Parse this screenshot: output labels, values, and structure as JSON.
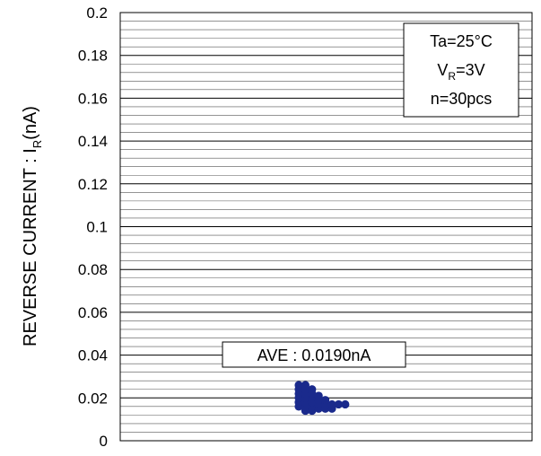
{
  "chart_data": {
    "type": "scatter",
    "ylabel": {
      "prefix": "REVERSE CURRENT : I",
      "sub": "R",
      "suffix": "(nA)"
    },
    "xlabel": "",
    "ylim": [
      0,
      0.2
    ],
    "yticks": [
      "0",
      "0.02",
      "0.04",
      "0.06",
      "0.08",
      "0.1",
      "0.12",
      "0.14",
      "0.16",
      "0.18",
      "0.2"
    ],
    "grid": true,
    "conditions": {
      "ta": "Ta=25°C",
      "vr": {
        "prefix": "V",
        "sub": "R",
        "suffix": "=3V"
      },
      "n": "n=30pcs"
    },
    "ave_label": "AVE : 0.0190nA",
    "marker_color": "#1a2a8c",
    "series": [
      {
        "points": [
          {
            "slot": 0,
            "y": 0.016
          },
          {
            "slot": 0,
            "y": 0.018
          },
          {
            "slot": 0,
            "y": 0.02
          },
          {
            "slot": 0,
            "y": 0.022
          },
          {
            "slot": 0,
            "y": 0.024
          },
          {
            "slot": 0,
            "y": 0.026
          },
          {
            "slot": 1,
            "y": 0.014
          },
          {
            "slot": 1,
            "y": 0.016
          },
          {
            "slot": 1,
            "y": 0.018
          },
          {
            "slot": 1,
            "y": 0.02
          },
          {
            "slot": 1,
            "y": 0.022
          },
          {
            "slot": 1,
            "y": 0.024
          },
          {
            "slot": 1,
            "y": 0.026
          },
          {
            "slot": 2,
            "y": 0.014
          },
          {
            "slot": 2,
            "y": 0.016
          },
          {
            "slot": 2,
            "y": 0.018
          },
          {
            "slot": 2,
            "y": 0.02
          },
          {
            "slot": 2,
            "y": 0.022
          },
          {
            "slot": 2,
            "y": 0.024
          },
          {
            "slot": 3,
            "y": 0.015
          },
          {
            "slot": 3,
            "y": 0.017
          },
          {
            "slot": 3,
            "y": 0.019
          },
          {
            "slot": 3,
            "y": 0.021
          },
          {
            "slot": 4,
            "y": 0.015
          },
          {
            "slot": 4,
            "y": 0.017
          },
          {
            "slot": 4,
            "y": 0.019
          },
          {
            "slot": 5,
            "y": 0.015
          },
          {
            "slot": 5,
            "y": 0.017
          },
          {
            "slot": 6,
            "y": 0.017
          },
          {
            "slot": 7,
            "y": 0.017
          }
        ]
      }
    ]
  }
}
